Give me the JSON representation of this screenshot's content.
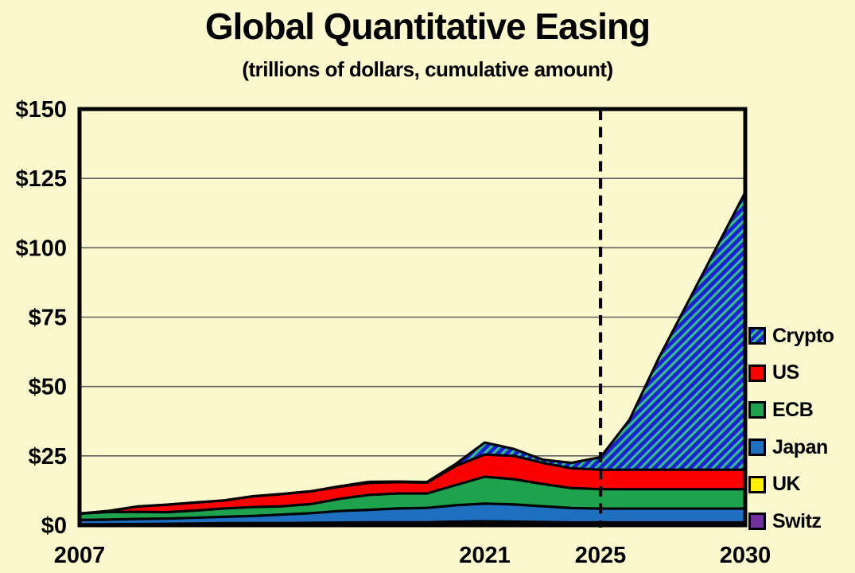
{
  "title": "Global Quantitative Easing",
  "subtitle": "(trillions of dollars, cumulative amount)",
  "colors": {
    "background": "#FBF8CD",
    "plot_border": "#000000",
    "gridline": "#616161",
    "divider_line": "#000000",
    "text": "#000000",
    "us": "#FB0000",
    "ecb": "#1EA24E",
    "japan": "#1E6FC0",
    "uk": "#FFF000",
    "switz": "#7030A0",
    "crypto_base": "#1E1ED2",
    "crypto_stripe": "#2FBE8B"
  },
  "chart_data": {
    "type": "area",
    "stacked": true,
    "title": "Global Quantitative Easing",
    "subtitle": "(trillions of dollars, cumulative amount)",
    "units": "trillions of US dollars, cumulative",
    "xlim": [
      2007,
      2030
    ],
    "ylim": [
      0,
      150
    ],
    "grid": "horizontal",
    "legend_position": "right",
    "projection_divider_year": 2025,
    "x": [
      2007,
      2008,
      2009,
      2010,
      2011,
      2012,
      2013,
      2014,
      2015,
      2016,
      2017,
      2018,
      2019,
      2020,
      2021,
      2022,
      2023,
      2024,
      2025,
      2026,
      2027,
      2028,
      2029,
      2030
    ],
    "series": [
      {
        "name": "Switz",
        "color_key": "switz",
        "values": [
          0.1,
          0.1,
          0.15,
          0.2,
          0.25,
          0.3,
          0.3,
          0.3,
          0.35,
          0.4,
          0.45,
          0.45,
          0.45,
          0.5,
          0.5,
          0.5,
          0.45,
          0.4,
          0.4,
          0.4,
          0.4,
          0.4,
          0.4,
          0.4
        ]
      },
      {
        "name": "UK",
        "color_key": "uk",
        "values": [
          0.2,
          0.25,
          0.3,
          0.3,
          0.35,
          0.45,
          0.45,
          0.45,
          0.5,
          0.55,
          0.6,
          0.6,
          0.6,
          0.8,
          0.9,
          0.8,
          0.7,
          0.6,
          0.6,
          0.6,
          0.6,
          0.6,
          0.6,
          0.6
        ]
      },
      {
        "name": "Japan",
        "color_key": "japan",
        "values": [
          1.6,
          1.7,
          1.8,
          1.9,
          2.1,
          2.3,
          2.6,
          3.1,
          3.5,
          4.2,
          4.5,
          5.0,
          5.2,
          5.9,
          6.4,
          6.2,
          5.7,
          5.2,
          5.0,
          5.0,
          5.0,
          5.0,
          5.0,
          5.0
        ]
      },
      {
        "name": "ECB",
        "color_key": "ecb",
        "values": [
          2.3,
          2.7,
          2.6,
          2.3,
          2.6,
          3.0,
          3.2,
          3.0,
          3.3,
          4.4,
          5.4,
          5.4,
          5.2,
          7.3,
          9.7,
          9.1,
          8.0,
          7.2,
          7.0,
          7.0,
          7.0,
          7.0,
          7.0,
          7.0
        ]
      },
      {
        "name": "US",
        "color_key": "us",
        "values": [
          0,
          0.4,
          1.9,
          2.7,
          2.9,
          2.9,
          3.9,
          4.4,
          4.6,
          4.4,
          4.3,
          4.1,
          3.9,
          6.9,
          8.0,
          8.4,
          7.6,
          7.1,
          7.0,
          7.0,
          7.0,
          7.0,
          7.0,
          7.0
        ]
      },
      {
        "name": "Crypto",
        "color_key": "crypto",
        "values": [
          0,
          0,
          0,
          0,
          0,
          0,
          0,
          0,
          0,
          0.1,
          0.4,
          0.2,
          0.2,
          0.7,
          4.3,
          2.5,
          1.2,
          2.0,
          4.5,
          18,
          40,
          60,
          80,
          100
        ]
      }
    ],
    "y_ticks": [
      {
        "value": 0,
        "label": "$0"
      },
      {
        "value": 25,
        "label": "$25"
      },
      {
        "value": 50,
        "label": "$50"
      },
      {
        "value": 75,
        "label": "$75"
      },
      {
        "value": 100,
        "label": "$100"
      },
      {
        "value": 125,
        "label": "$125"
      },
      {
        "value": 150,
        "label": "$150"
      }
    ],
    "x_ticks": [
      {
        "value": 2007,
        "label": "2007"
      },
      {
        "value": 2021,
        "label": "2021"
      },
      {
        "value": 2025,
        "label": "2025"
      },
      {
        "value": 2030,
        "label": "2030"
      }
    ]
  },
  "legend": [
    {
      "label": "Crypto",
      "swatch": "crypto"
    },
    {
      "label": "US",
      "swatch": "us"
    },
    {
      "label": "ECB",
      "swatch": "ecb"
    },
    {
      "label": "Japan",
      "swatch": "japan"
    },
    {
      "label": "UK",
      "swatch": "uk"
    },
    {
      "label": "Switz",
      "swatch": "switz"
    }
  ]
}
